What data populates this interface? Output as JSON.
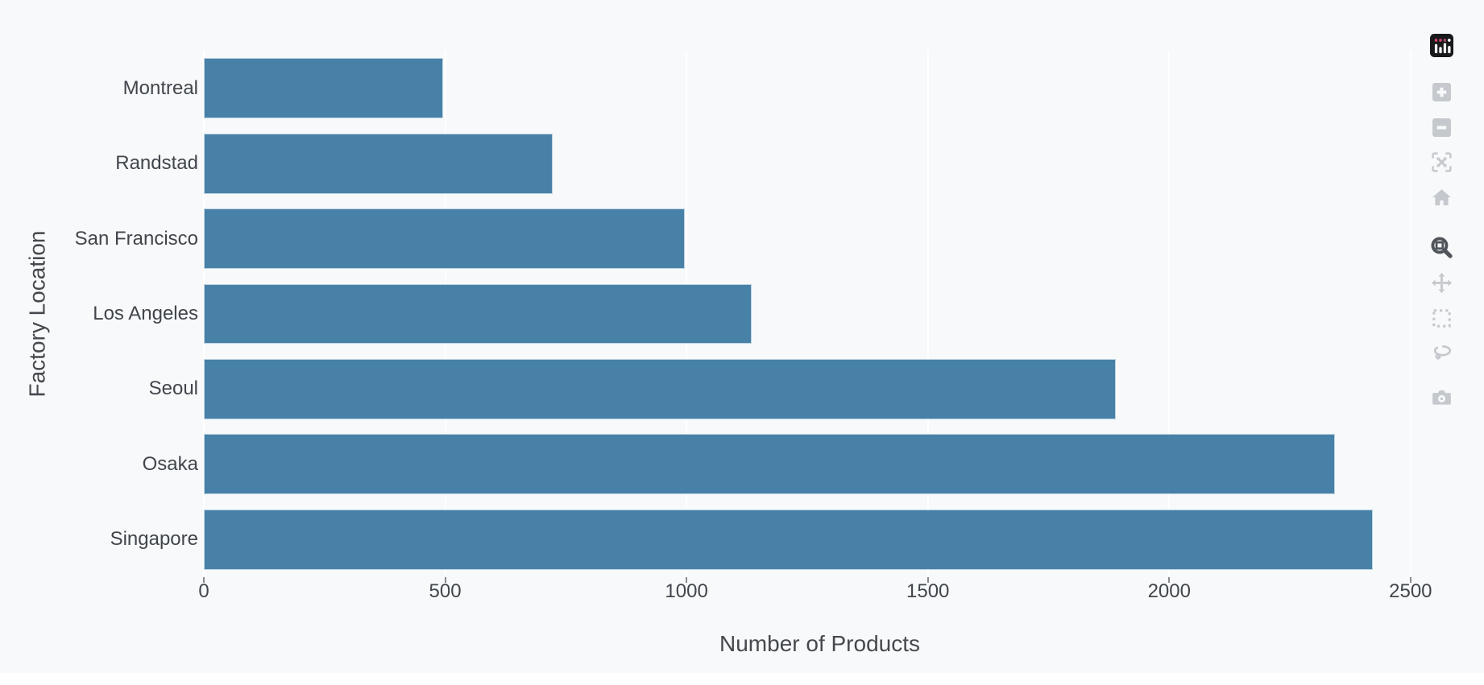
{
  "figure": {
    "background_color": "#f7f9fa",
    "x_title": "Number of Products",
    "y_title": "Factory Location"
  },
  "chart_data": {
    "type": "bar",
    "orientation": "horizontal",
    "title": "",
    "xlabel": "Number of Products",
    "ylabel": "Factory Location",
    "categories": [
      "Montreal",
      "Randstad",
      "San Francisco",
      "Los Angeles",
      "Seoul",
      "Osaka",
      "Singapore"
    ],
    "values": [
      495,
      722,
      997,
      1135,
      1890,
      2344,
      2422
    ],
    "xticks": [
      0,
      500,
      1000,
      1500,
      2000,
      2500
    ],
    "xlim": [
      0,
      2552
    ],
    "bar_color": "#4781a8",
    "grid": true,
    "gridline_color": "#ffffff",
    "legend": false
  },
  "modebar": {
    "buttons": [
      {
        "id": "plotly-logo",
        "label": "plotly logomark"
      },
      {
        "id": "zoom-in",
        "label": "Zoom in"
      },
      {
        "id": "zoom-out",
        "label": "Zoom out"
      },
      {
        "id": "autoscale",
        "label": "Autoscale"
      },
      {
        "id": "reset-axes",
        "label": "Reset axes"
      },
      {
        "id": "zoom",
        "label": "Zoom",
        "active": true
      },
      {
        "id": "pan",
        "label": "Pan"
      },
      {
        "id": "box-select",
        "label": "Box Select"
      },
      {
        "id": "lasso-select",
        "label": "Lasso Select"
      },
      {
        "id": "download-png",
        "label": "Download plot as a png"
      }
    ]
  },
  "colors": {
    "icon_inactive": "#c5c9cd",
    "icon_active": "#50555b",
    "tick_label": "#41464c",
    "axis_title": "#45494e",
    "logo_background": "#17191b",
    "logo_dot": "#d9446b"
  }
}
